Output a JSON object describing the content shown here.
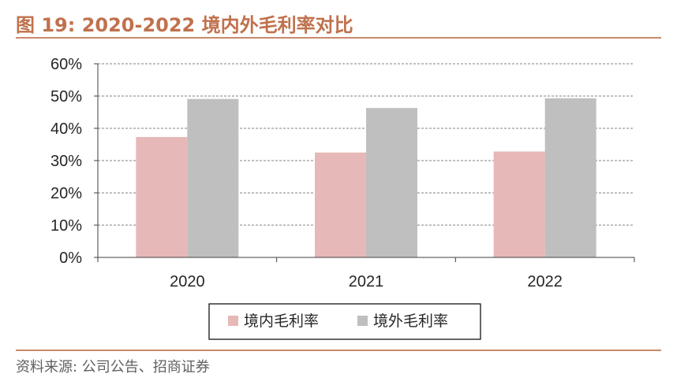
{
  "header": {
    "title": "图 19:  2020-2022 境内外毛利率对比"
  },
  "footer": {
    "source": "资料来源:  公司公告、招商证券"
  },
  "colors": {
    "domestic": "#e6b8b7",
    "overseas": "#bfbfbf",
    "accent": "#c0714d",
    "grid": "#808080",
    "axis": "#404040"
  },
  "chart_data": {
    "type": "bar",
    "title": "2020-2022 境内外毛利率对比",
    "categories": [
      "2020",
      "2021",
      "2022"
    ],
    "series": [
      {
        "name": "境内毛利率",
        "values": [
          0.373,
          0.325,
          0.328
        ]
      },
      {
        "name": "境外毛利率",
        "values": [
          0.491,
          0.463,
          0.493
        ]
      }
    ],
    "y_ticks": [
      "0%",
      "10%",
      "20%",
      "30%",
      "40%",
      "50%",
      "60%"
    ],
    "ylim": [
      0,
      0.6
    ],
    "xlabel": "",
    "ylabel": "",
    "grid": true,
    "legend_position": "bottom"
  }
}
